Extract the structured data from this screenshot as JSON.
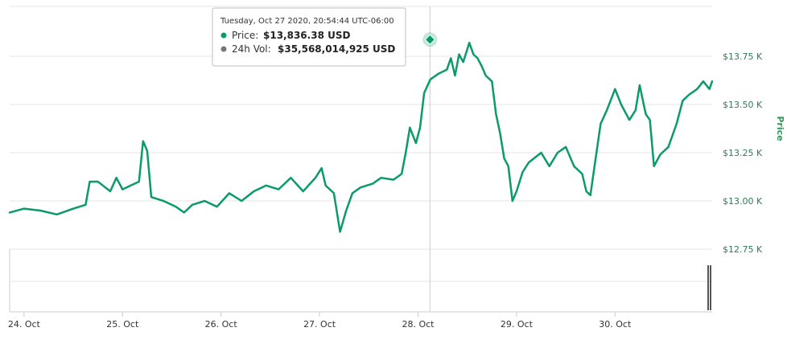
{
  "chart_data": {
    "type": "line",
    "title": "",
    "y_axis_title": "Price",
    "ylim": [
      12.75,
      13.75
    ],
    "y_ticks": [
      "$13.75 K",
      "$13.50 K",
      "$13.25 K",
      "$13.00 K",
      "$12.75 K"
    ],
    "y_tick_values": [
      13.75,
      13.5,
      13.25,
      13.0,
      12.75
    ],
    "x_range": [
      "2020-10-23T20:30",
      "2020-10-30T23:40"
    ],
    "x_ticks": [
      "24. Oct",
      "25. Oct",
      "26. Oct",
      "27. Oct",
      "28. Oct",
      "29. Oct",
      "30. Oct"
    ],
    "x_tick_dates": [
      "2020-10-24",
      "2020-10-25",
      "2020-10-26",
      "2020-10-27",
      "2020-10-28",
      "2020-10-29",
      "2020-10-30"
    ],
    "series": [
      {
        "name": "Price",
        "unit": "K USD",
        "color": "#0b9a6a",
        "points": [
          [
            "2020-10-23T20:30",
            12.94
          ],
          [
            "2020-10-24T00:00",
            12.96
          ],
          [
            "2020-10-24T04:00",
            12.95
          ],
          [
            "2020-10-24T08:00",
            12.93
          ],
          [
            "2020-10-24T12:00",
            12.96
          ],
          [
            "2020-10-24T15:00",
            12.98
          ],
          [
            "2020-10-24T16:00",
            13.1
          ],
          [
            "2020-10-24T18:00",
            13.1
          ],
          [
            "2020-10-24T21:00",
            13.05
          ],
          [
            "2020-10-24T22:30",
            13.12
          ],
          [
            "2020-10-25T00:00",
            13.06
          ],
          [
            "2020-10-25T02:00",
            13.08
          ],
          [
            "2020-10-25T04:00",
            13.1
          ],
          [
            "2020-10-25T05:00",
            13.31
          ],
          [
            "2020-10-25T06:00",
            13.26
          ],
          [
            "2020-10-25T07:00",
            13.02
          ],
          [
            "2020-10-25T10:00",
            13.0
          ],
          [
            "2020-10-25T13:00",
            12.97
          ],
          [
            "2020-10-25T15:00",
            12.94
          ],
          [
            "2020-10-25T17:00",
            12.98
          ],
          [
            "2020-10-25T20:00",
            13.0
          ],
          [
            "2020-10-25T23:00",
            12.97
          ],
          [
            "2020-10-26T02:00",
            13.04
          ],
          [
            "2020-10-26T05:00",
            13.0
          ],
          [
            "2020-10-26T08:00",
            13.05
          ],
          [
            "2020-10-26T11:00",
            13.08
          ],
          [
            "2020-10-26T14:00",
            13.06
          ],
          [
            "2020-10-26T17:00",
            13.12
          ],
          [
            "2020-10-26T20:00",
            13.05
          ],
          [
            "2020-10-26T23:00",
            13.12
          ],
          [
            "2020-10-27T00:30",
            13.17
          ],
          [
            "2020-10-27T01:30",
            13.08
          ],
          [
            "2020-10-27T03:30",
            13.04
          ],
          [
            "2020-10-27T05:00",
            12.84
          ],
          [
            "2020-10-27T06:30",
            12.95
          ],
          [
            "2020-10-27T08:00",
            13.04
          ],
          [
            "2020-10-27T10:00",
            13.07
          ],
          [
            "2020-10-27T13:00",
            13.09
          ],
          [
            "2020-10-27T15:00",
            13.12
          ],
          [
            "2020-10-27T18:00",
            13.11
          ],
          [
            "2020-10-27T20:00",
            13.14
          ],
          [
            "2020-10-27T21:00",
            13.25
          ],
          [
            "2020-10-27T22:00",
            13.38
          ],
          [
            "2020-10-27T23:30",
            13.3
          ],
          [
            "2020-10-28T00:30",
            13.38
          ],
          [
            "2020-10-28T01:30",
            13.56
          ],
          [
            "2020-10-28T03:00",
            13.63
          ],
          [
            "2020-10-28T05:00",
            13.66
          ],
          [
            "2020-10-28T07:00",
            13.68
          ],
          [
            "2020-10-28T08:00",
            13.74
          ],
          [
            "2020-10-28T09:00",
            13.65
          ],
          [
            "2020-10-28T10:00",
            13.76
          ],
          [
            "2020-10-28T11:00",
            13.72
          ],
          [
            "2020-10-28T12:30",
            13.82
          ],
          [
            "2020-10-28T13:30",
            13.76
          ],
          [
            "2020-10-28T14:30",
            13.74
          ],
          [
            "2020-10-28T15:30",
            13.7
          ],
          [
            "2020-10-28T16:30",
            13.65
          ],
          [
            "2020-10-28T18:00",
            13.62
          ],
          [
            "2020-10-28T19:00",
            13.45
          ],
          [
            "2020-10-28T20:00",
            13.35
          ],
          [
            "2020-10-28T21:00",
            13.22
          ],
          [
            "2020-10-28T22:00",
            13.18
          ],
          [
            "2020-10-28T23:00",
            13.0
          ],
          [
            "2020-10-29T00:00",
            13.05
          ],
          [
            "2020-10-29T01:30",
            13.15
          ],
          [
            "2020-10-29T03:00",
            13.2
          ],
          [
            "2020-10-29T06:00",
            13.25
          ],
          [
            "2020-10-29T08:00",
            13.18
          ],
          [
            "2020-10-29T10:00",
            13.25
          ],
          [
            "2020-10-29T12:00",
            13.28
          ],
          [
            "2020-10-29T14:00",
            13.18
          ],
          [
            "2020-10-29T16:00",
            13.14
          ],
          [
            "2020-10-29T17:00",
            13.05
          ],
          [
            "2020-10-29T18:00",
            13.03
          ],
          [
            "2020-10-29T19:00",
            13.18
          ],
          [
            "2020-10-29T20:30",
            13.4
          ],
          [
            "2020-10-29T22:00",
            13.47
          ],
          [
            "2020-10-30T00:00",
            13.58
          ],
          [
            "2020-10-30T01:30",
            13.5
          ],
          [
            "2020-10-30T03:30",
            13.42
          ],
          [
            "2020-10-30T05:00",
            13.47
          ],
          [
            "2020-10-30T06:00",
            13.6
          ],
          [
            "2020-10-30T07:30",
            13.45
          ],
          [
            "2020-10-30T08:30",
            13.42
          ],
          [
            "2020-10-30T09:30",
            13.18
          ],
          [
            "2020-10-30T11:00",
            13.24
          ],
          [
            "2020-10-30T13:00",
            13.28
          ],
          [
            "2020-10-30T15:00",
            13.4
          ],
          [
            "2020-10-30T16:30",
            13.52
          ],
          [
            "2020-10-30T18:00",
            13.55
          ],
          [
            "2020-10-30T20:00",
            13.58
          ],
          [
            "2020-10-30T21:30",
            13.62
          ],
          [
            "2020-10-30T23:00",
            13.58
          ],
          [
            "2020-10-30T23:40",
            13.62
          ]
        ]
      },
      {
        "name": "24h Vol",
        "unit": "USD",
        "color": "#555555",
        "display": "navigator"
      }
    ],
    "highlight": {
      "x": "2020-10-28T02:54:44Z",
      "y": 13.83638,
      "marker": "diamond"
    },
    "grid": true,
    "legend": "none",
    "line_color": "#0b9a6a",
    "grid_color": "#e6e6e6",
    "y_label_color": "#2a7d4f"
  },
  "tooltip": {
    "timestamp": "Tuesday, Oct 27 2020, 20:54:44 UTC-06:00",
    "rows": [
      {
        "key": "Price:",
        "value": "$13,836.38 USD",
        "dot_color": "#0b9a6a"
      },
      {
        "key": "24h Vol:",
        "value": "$35,568,014,925 USD",
        "dot_color": "#777777"
      }
    ]
  }
}
